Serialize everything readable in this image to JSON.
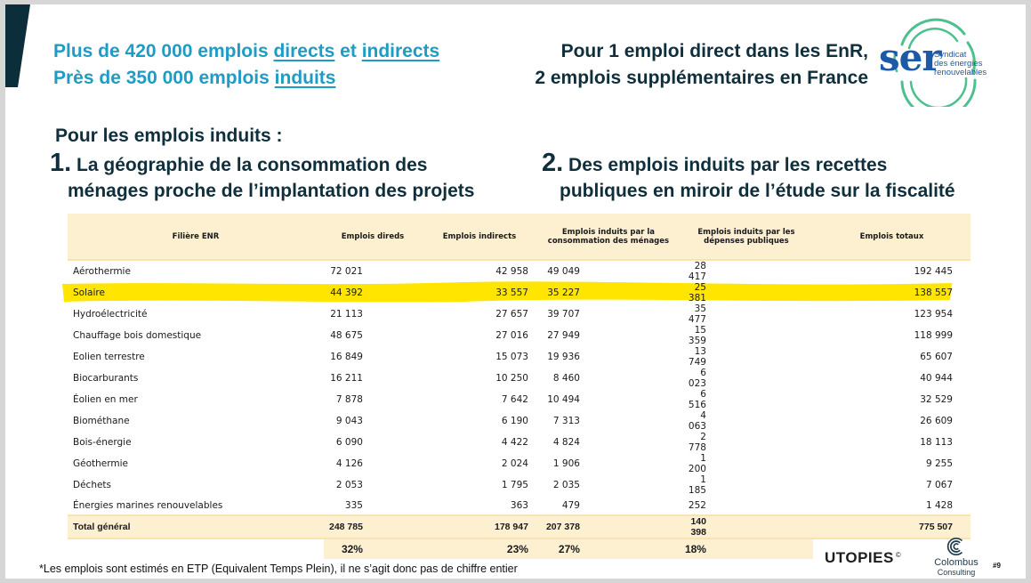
{
  "headline_left": {
    "line1_prefix": "Plus de 420 000 emplois ",
    "line1_link1": "directs",
    "line1_mid": " et ",
    "line1_link2": "indirects",
    "line2_prefix": "Près de 350 000 emplois ",
    "line2_link": "induits"
  },
  "headline_right": {
    "line1": "Pour 1 emploi direct dans les EnR,",
    "line2": "2 emplois supplémentaires en France"
  },
  "ser_logo": {
    "word": "ser",
    "line1": "Syndicat",
    "line2": "des énergies",
    "line3": "renouvelables"
  },
  "section": {
    "intro": "Pour les emplois induits :",
    "point1_num": "1.",
    "point1_line1": "La géographie de la consommation des",
    "point1_line2": "ménages proche de l’implantation des projets",
    "point2_num": "2.",
    "point2_line1": "Des emplois induits par les recettes",
    "point2_line2": "publiques en miroir de l’étude sur la fiscalité"
  },
  "table": {
    "headers": [
      "Filière ENR",
      "Emplois direds",
      "Emplois indirects",
      "Emplois induits par la consommation des ménages",
      "Emplois induits par les dépenses publiques",
      "Emplois totaux"
    ],
    "rows": [
      {
        "name": "Aérothermie",
        "values": [
          "72 021",
          "42 958",
          "49 049",
          "28 417",
          "192 445"
        ]
      },
      {
        "name": "Solaire",
        "values": [
          "44 392",
          "33 557",
          "35 227",
          "25 381",
          "138 557"
        ]
      },
      {
        "name": "Hydroélectricité",
        "values": [
          "21 113",
          "27 657",
          "39 707",
          "35 477",
          "123 954"
        ]
      },
      {
        "name": "Chauffage bois domestique",
        "values": [
          "48 675",
          "27 016",
          "27 949",
          "15 359",
          "118 999"
        ]
      },
      {
        "name": "Eolien terrestre",
        "values": [
          "16 849",
          "15 073",
          "19 936",
          "13 749",
          "65 607"
        ]
      },
      {
        "name": "Biocarburants",
        "values": [
          "16 211",
          "10 250",
          "8 460",
          "6 023",
          "40 944"
        ]
      },
      {
        "name": "Éolien en mer",
        "values": [
          "7 878",
          "7 642",
          "10 494",
          "6 516",
          "32 529"
        ]
      },
      {
        "name": "Biométhane",
        "values": [
          "9 043",
          "6 190",
          "7 313",
          "4 063",
          "26 609"
        ]
      },
      {
        "name": "Bois-énergie",
        "values": [
          "6 090",
          "4 422",
          "4 824",
          "2 778",
          "18 113"
        ]
      },
      {
        "name": "Géothermie",
        "values": [
          "4 126",
          "2 024",
          "1 906",
          "1 200",
          "9 255"
        ]
      },
      {
        "name": "Déchets",
        "values": [
          "2 053",
          "1 795",
          "2 035",
          "1 185",
          "7 067"
        ]
      },
      {
        "name": "Énergies marines renouvelables",
        "values": [
          "335",
          "363",
          "479",
          "252",
          "1 428"
        ]
      }
    ],
    "total": {
      "name": "Total général",
      "values": [
        "248 785",
        "178 947",
        "207 378",
        "140 398",
        "775 507"
      ]
    },
    "shares": [
      "32%",
      "23%",
      "27%",
      "18%"
    ],
    "highlighted_row": "Solaire",
    "highlight_color": "#ffe500",
    "header_bg": "#fdf0d1"
  },
  "footer": {
    "footnote": "*Les emplois sont estimés en ETP (Equivalent Temps Plein), il ne s’agit donc pas de chiffre entier",
    "utopies": "UTOPIES",
    "utopies_mark": "©",
    "colombus_name": "Colombus",
    "colombus_sub": "Consulting",
    "page_number": "#9"
  },
  "colors": {
    "headline_blue": "#1f9cc4",
    "dark_navy": "#0f2f3d",
    "ser_blue": "#1c5aa8",
    "ser_green": "#4cc08f"
  }
}
